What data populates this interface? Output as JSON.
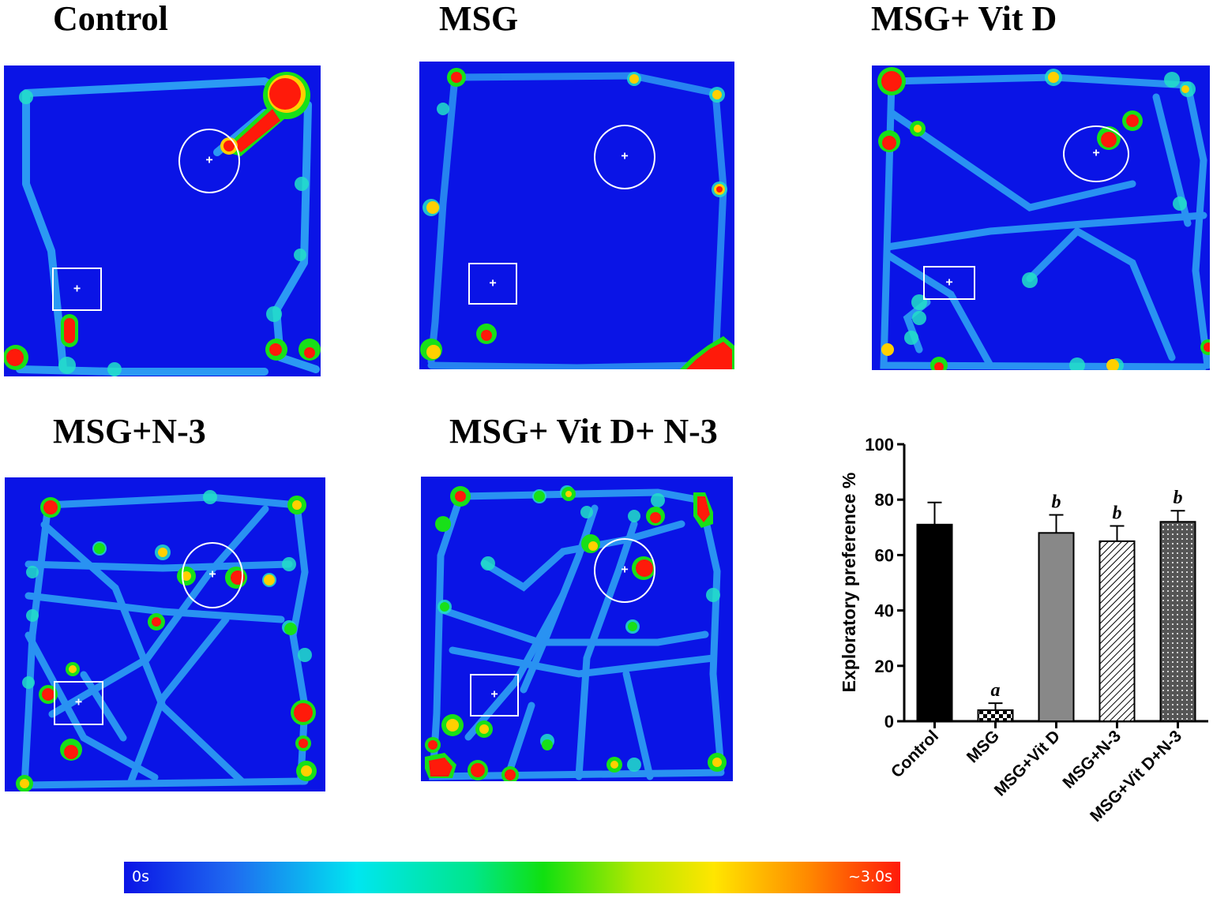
{
  "panels": [
    {
      "title": "Control"
    },
    {
      "title": "MSG"
    },
    {
      "title": "MSG+ Vit D"
    },
    {
      "title": "MSG+N-3"
    },
    {
      "title": "MSG+ Vit D+ N-3"
    }
  ],
  "colorbar": {
    "min_label": "0s",
    "max_label": "~3.0s",
    "colors": [
      "#0a14e6",
      "#00e6f0",
      "#10e010",
      "#ffe600",
      "#ff1a0a"
    ]
  },
  "chart_data": {
    "type": "bar",
    "title": "",
    "xlabel": "",
    "ylabel": "Exploratory preference %",
    "ylim": [
      0,
      100
    ],
    "yticks": [
      0,
      20,
      40,
      60,
      80,
      100
    ],
    "categories": [
      "Control",
      "MSG",
      "MSG+Vit D",
      "MSG+N-3",
      "MSG+Vit D+N-3"
    ],
    "values": [
      71,
      4,
      68,
      65,
      72
    ],
    "errors": [
      8,
      2.5,
      6.5,
      5.5,
      4
    ],
    "annotations": [
      "",
      "a",
      "b",
      "b",
      "b"
    ],
    "fills": [
      "solid black",
      "black-white checkerboard",
      "solid gray",
      "diagonal hatch",
      "dotted gray"
    ]
  }
}
